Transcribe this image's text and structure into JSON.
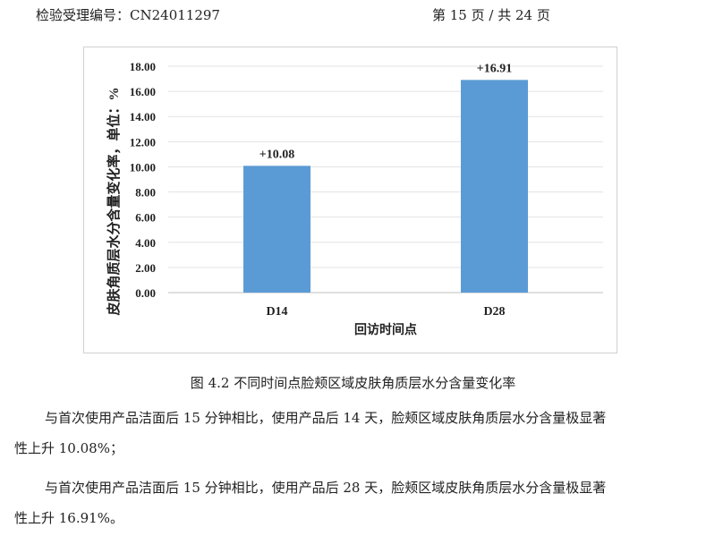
{
  "header": {
    "acceptance_no": "检验受理编号：CN24011297",
    "page_info": "第 15 页 / 共 24 页"
  },
  "chart_data": {
    "type": "bar",
    "categories": [
      "D14",
      "D28"
    ],
    "values": [
      10.08,
      16.91
    ],
    "data_labels": [
      "+10.08",
      "+16.91"
    ],
    "xlabel": "回访时间点",
    "ylabel": "皮肤角质层水分含量变化率，单位：%",
    "ylim": [
      0,
      18
    ],
    "yticks": [
      "0.00",
      "2.00",
      "4.00",
      "6.00",
      "8.00",
      "10.00",
      "12.00",
      "14.00",
      "16.00",
      "18.00"
    ],
    "grid": true,
    "bar_color": "#5B9BD5"
  },
  "caption": "图 4.2 不同时间点脸颊区域皮肤角质层水分含量变化率",
  "paragraphs": [
    {
      "line1": "与首次使用产品洁面后 15 分钟相比，使用产品后 14 天，脸颊区域皮肤角质层水分含量极显著",
      "line2": "性上升 10.08%；"
    },
    {
      "line1": "与首次使用产品洁面后 15 分钟相比，使用产品后 28 天，脸颊区域皮肤角质层水分含量极显著",
      "line2": "性上升 16.91%。"
    }
  ]
}
